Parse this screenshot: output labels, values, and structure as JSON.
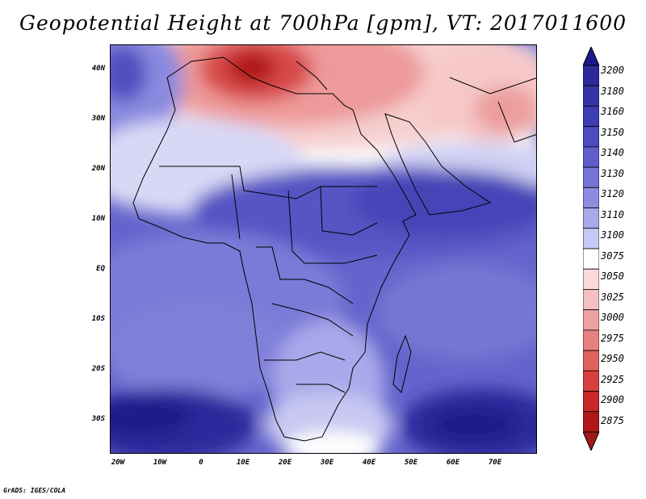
{
  "title": "Geopotential Height at 700hPa [gpm], VT: 2017011600",
  "footer": "GrADS: IGES/COLA",
  "map": {
    "lat_labels": [
      "40N",
      "30N",
      "20N",
      "10N",
      "EQ",
      "10S",
      "20S",
      "30S"
    ],
    "lon_labels": [
      "20W",
      "10W",
      "0",
      "10E",
      "20E",
      "30E",
      "40E",
      "50E",
      "60E",
      "70E"
    ]
  },
  "colorbar": {
    "levels": [
      "3200",
      "3180",
      "3160",
      "3150",
      "3140",
      "3130",
      "3120",
      "3110",
      "3100",
      "3075",
      "3050",
      "3025",
      "3000",
      "2975",
      "2950",
      "2925",
      "2900",
      "2875"
    ],
    "top_arrow_color": "#1a1a8c",
    "bottom_arrow_color": "#a01818",
    "colors": [
      "#2a2a9a",
      "#3434a8",
      "#3e3eb4",
      "#4c4cc0",
      "#5e5ecc",
      "#7474d6",
      "#8c8ce0",
      "#a8a8ea",
      "#c8c8f4",
      "#ffffff",
      "#fadada",
      "#f5c0c0",
      "#efa0a0",
      "#e88080",
      "#e06060",
      "#d84040",
      "#c82828",
      "#b01818"
    ]
  }
}
